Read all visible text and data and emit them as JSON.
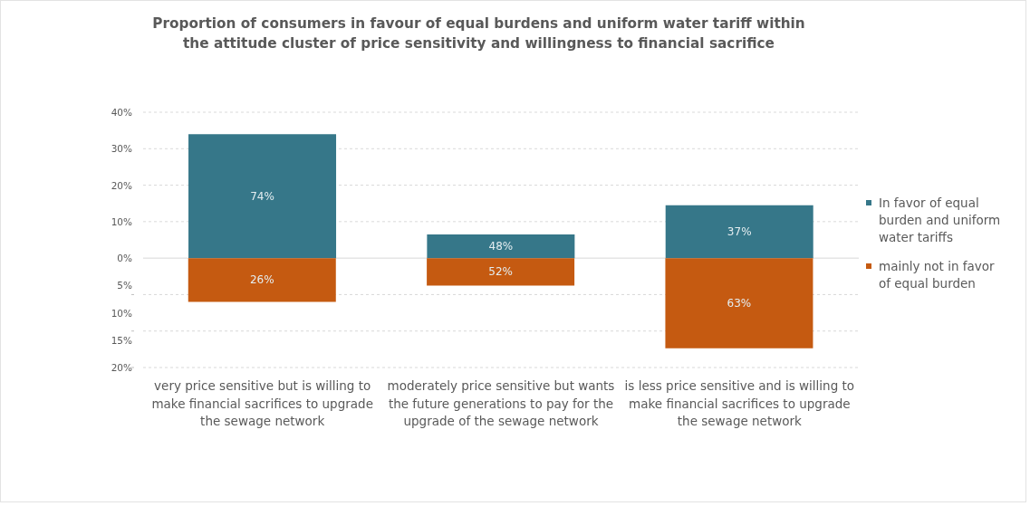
{
  "chart_data": {
    "type": "bar",
    "title": "Proportion of consumers in favour of equal burdens and uniform water tariff within the attitude cluster of price sensitivity and willingness to financial sacrifice",
    "categories": [
      "very price sensitive but is willing to make financial sacrifices to upgrade the sewage network",
      "moderately price sensitive but wants the future generations to pay for the upgrade of the sewage network",
      "is less price sensitive and is willing to make financial sacrifices to upgrade the sewage network"
    ],
    "series": [
      {
        "name": "In favor of equal burden and uniform water tariffs",
        "color": "#367789",
        "values": [
          34,
          6.5,
          14.5
        ]
      },
      {
        "name": "mainly not in favor of equal burden",
        "color": "#c55a11",
        "axis": "y2",
        "values": [
          8,
          5,
          16.5
        ]
      }
    ],
    "stacked": true,
    "annotations": [
      "74%",
      "48%",
      "37%",
      "26%",
      "52%",
      "63%"
    ],
    "ylim": [
      -30,
      40
    ],
    "yticks": [
      {
        "value": 40,
        "label": "40%"
      },
      {
        "value": 30,
        "label": "30%"
      },
      {
        "value": 20,
        "label": "20%"
      },
      {
        "value": 10,
        "label": "10%"
      },
      {
        "value": 0,
        "label": "0%"
      },
      {
        "value": -10,
        "label": null
      },
      {
        "value": -20,
        "label": null
      },
      {
        "value": -30,
        "label": null
      }
    ],
    "y2lim": [
      20,
      -26.7
    ],
    "y2ticks": [
      {
        "value": 5,
        "label": "5%"
      },
      {
        "value": 10,
        "label": "10%"
      },
      {
        "value": 15,
        "label": "15%"
      },
      {
        "value": 20,
        "label": "20%"
      }
    ],
    "grid": "y",
    "legend": "right"
  }
}
